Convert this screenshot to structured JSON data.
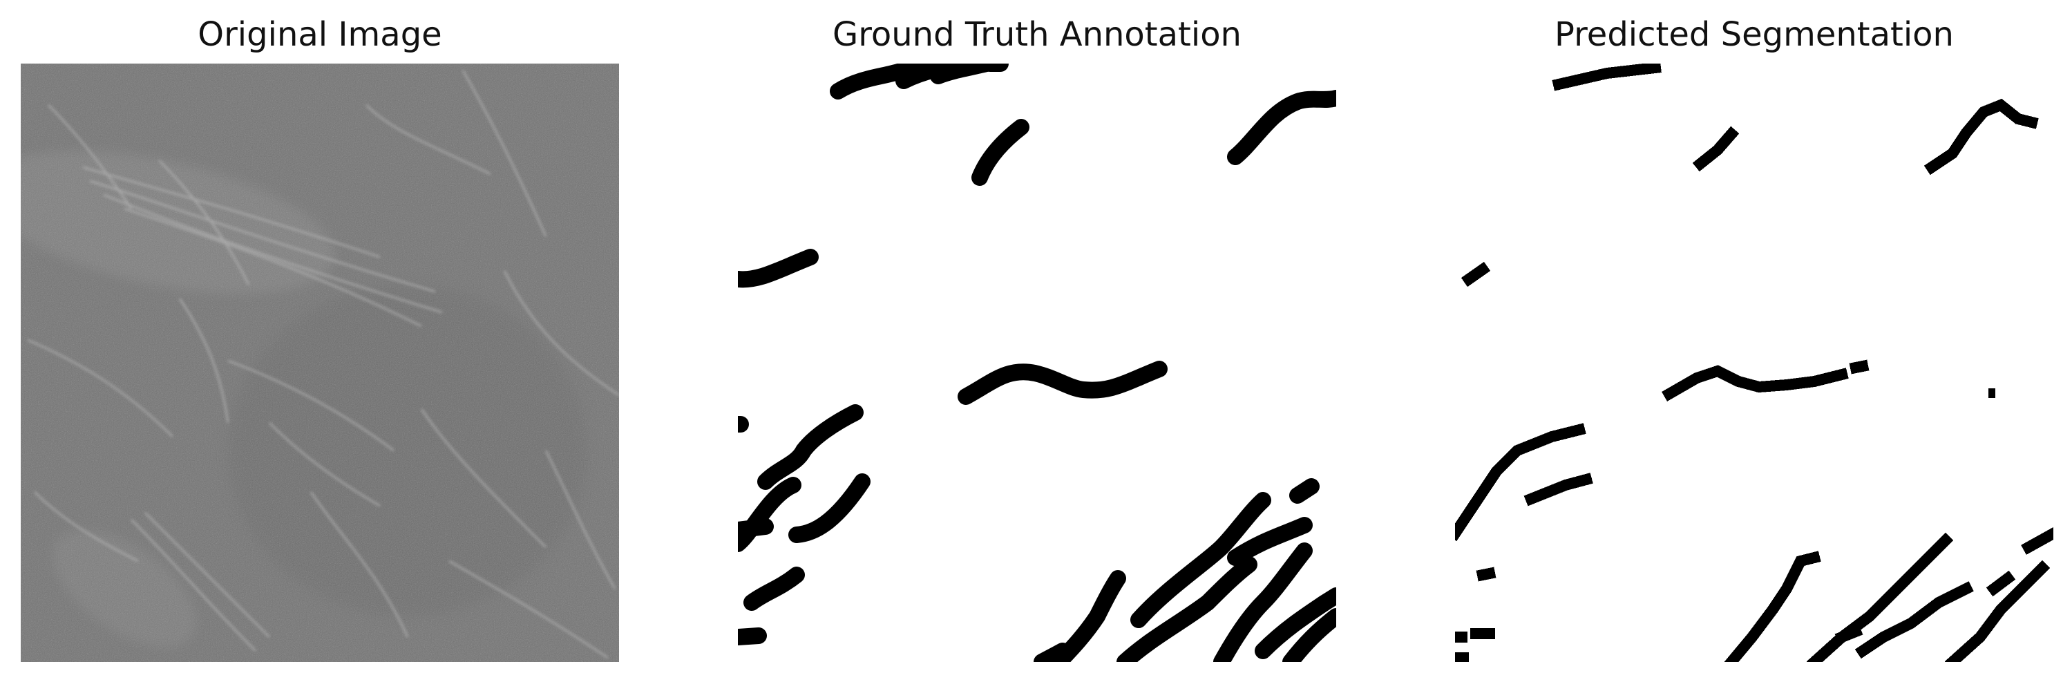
{
  "panels": [
    {
      "title": "Original Image"
    },
    {
      "title": "Ground Truth Annotation"
    },
    {
      "title": "Predicted Segmentation"
    }
  ],
  "colors": {
    "background": "#ffffff",
    "mask_foreground": "#000000",
    "grayscale_base": "#777777"
  }
}
